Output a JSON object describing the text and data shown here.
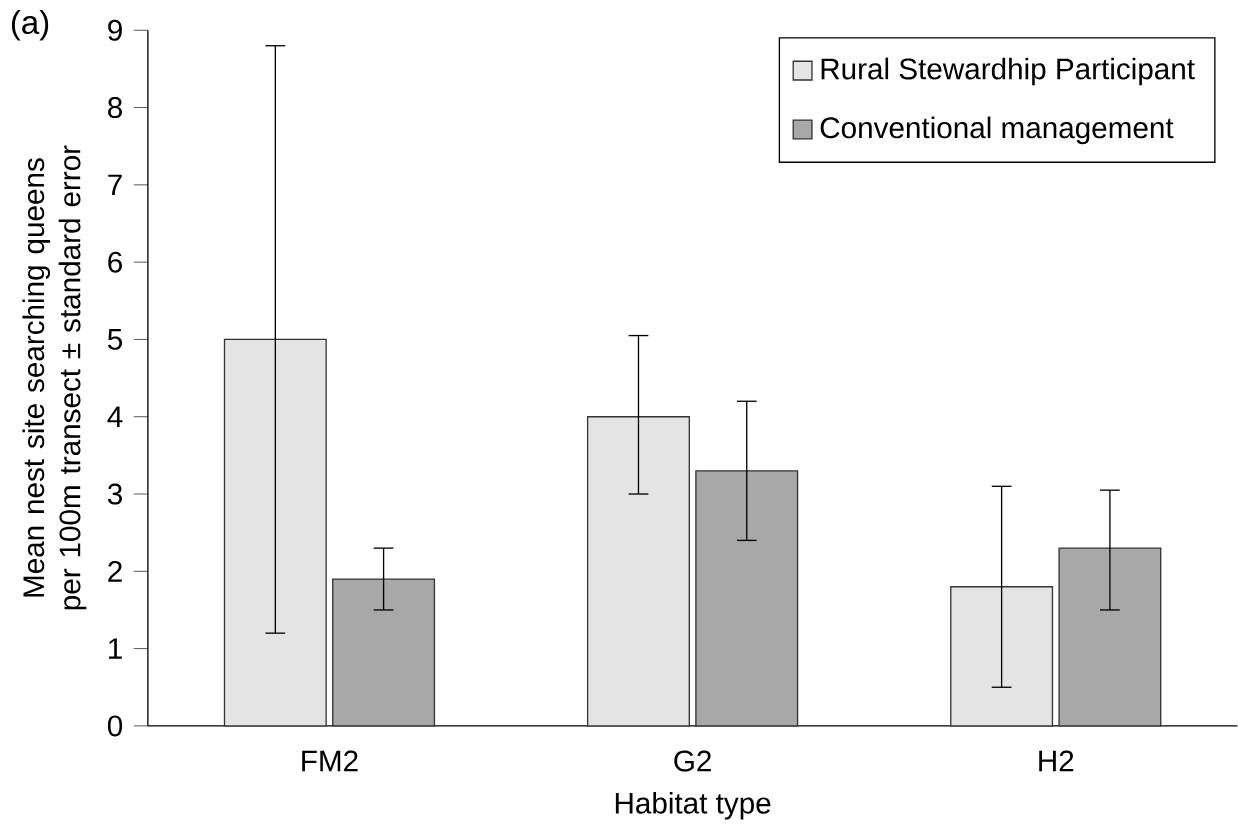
{
  "chart_data": {
    "type": "bar",
    "xlabel": "Habitat type",
    "ylabel": "Mean nest site searching queens per 100m transect ± standard error",
    "annotations": [
      "(a)"
    ],
    "categories": [
      "FM2",
      "G2",
      "H2"
    ],
    "series": [
      {
        "name": "Rural Stewardhip Participant",
        "color": "#e4e4e4",
        "values": [
          5,
          4,
          1.8
        ],
        "errors": [
          [
            1.2,
            8.8
          ],
          [
            3.0,
            5.05
          ],
          [
            0.5,
            3.1
          ]
        ]
      },
      {
        "name": "Conventional management",
        "color": "#a8a8a8",
        "values": [
          1.9,
          3.3,
          2.3
        ],
        "errors": [
          [
            1.5,
            2.3
          ],
          [
            2.4,
            4.2
          ],
          [
            1.5,
            3.05
          ]
        ]
      }
    ],
    "ylim": [
      0,
      9
    ],
    "yticks": [
      0,
      1,
      2,
      3,
      4,
      5,
      6,
      7,
      8,
      9
    ],
    "grid": false,
    "legend": "top right"
  }
}
